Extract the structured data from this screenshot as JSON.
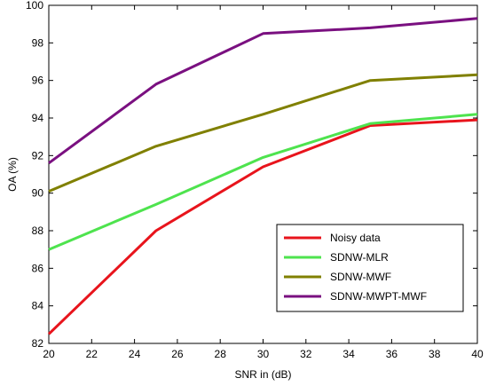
{
  "chart_data": {
    "type": "line",
    "xlabel": "SNR in (dB)",
    "ylabel": "OA (%)",
    "xlim": [
      20,
      40
    ],
    "ylim": [
      82,
      100
    ],
    "xticks": [
      20,
      22,
      24,
      26,
      28,
      30,
      32,
      34,
      36,
      38,
      40
    ],
    "yticks": [
      82,
      84,
      86,
      88,
      90,
      92,
      94,
      96,
      98,
      100
    ],
    "grid": false,
    "legend_position": "lower-right",
    "series": [
      {
        "name": "Noisy data",
        "color": "#e8141c",
        "x": [
          20,
          25,
          30,
          35,
          40
        ],
        "y": [
          82.5,
          88.0,
          91.4,
          93.6,
          93.9
        ]
      },
      {
        "name": "SDNW-MLR",
        "color": "#4ee34e",
        "x": [
          20,
          25,
          30,
          35,
          40
        ],
        "y": [
          87.0,
          89.4,
          91.9,
          93.7,
          94.2
        ]
      },
      {
        "name": "SDNW-MWF",
        "color": "#808000",
        "x": [
          20,
          25,
          30,
          35,
          40
        ],
        "y": [
          90.1,
          92.5,
          94.2,
          96.0,
          96.3
        ]
      },
      {
        "name": "SDNW-MWPT-MWF",
        "color": "#7a1080",
        "x": [
          20,
          25,
          30,
          35,
          40
        ],
        "y": [
          91.6,
          95.8,
          98.5,
          98.8,
          99.3
        ]
      }
    ]
  }
}
